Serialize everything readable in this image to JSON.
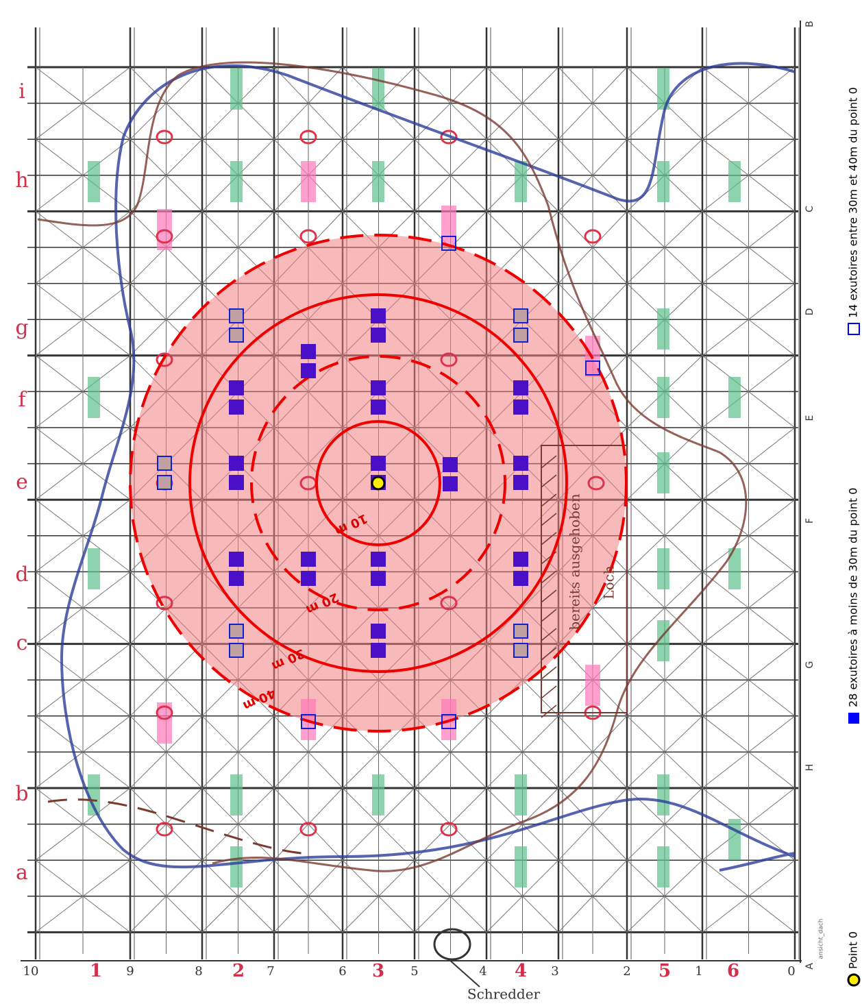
{
  "row_labels": [
    "i",
    "h",
    "g",
    "f",
    "e",
    "d",
    "c",
    "b",
    "a"
  ],
  "bottom_labels": [
    "10",
    "1",
    "9",
    "8",
    "2",
    "7",
    "6",
    "3",
    "5",
    "4",
    "4",
    "3",
    "2",
    "5",
    "1",
    "6",
    "0"
  ],
  "side_labels": [
    "B",
    "C",
    "D",
    "E",
    "F",
    "G",
    "H",
    "A"
  ],
  "radius_labels": [
    "10 m",
    "20 m",
    "30 m",
    "40 m"
  ],
  "annotations": {
    "hole_1": "bereits ausgehoben",
    "hole_2": "Loch",
    "shredder": "Schredder",
    "sheet": "ansicht_dach"
  },
  "legend": [
    {
      "label": "Point 0"
    },
    {
      "label": "28 exutoires à moins de 30m du point 0"
    },
    {
      "label": "14 exutoires entre 30m et 40m du point 0"
    }
  ]
}
